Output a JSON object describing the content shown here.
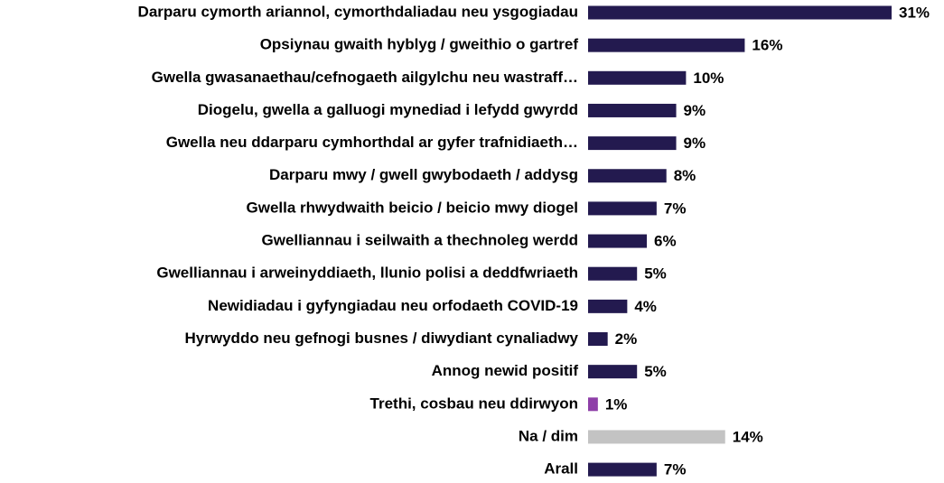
{
  "chart_data": {
    "type": "hbar",
    "categories": [
      "Darparu cymorth ariannol, cymorthdaliadau neu ysgogiadau",
      "Opsiynau gwaith hyblyg / gweithio o gartref",
      "Gwella gwasanaethau/cefnogaeth ailgylchu neu wastraff…",
      "Diogelu, gwella a galluogi mynediad i lefydd gwyrdd",
      "Gwella neu ddarparu cymhorthdal ar gyfer trafnidiaeth…",
      "Darparu mwy / gwell gwybodaeth / addysg",
      "Gwella rhwydwaith beicio / beicio mwy diogel",
      "Gwelliannau i seilwaith a thechnoleg werdd",
      "Gwelliannau i arweinyddiaeth, llunio polisi a deddfwriaeth",
      "Newidiadau i gyfyngiadau neu orfodaeth COVID-19",
      "Hyrwyddo neu gefnogi busnes / diwydiant cynaliadwy",
      "Annog newid positif",
      "Trethi, cosbau neu ddirwyon",
      "Na / dim",
      "Arall"
    ],
    "values": [
      31,
      16,
      10,
      9,
      9,
      8,
      7,
      6,
      5,
      4,
      2,
      5,
      1,
      14,
      7
    ],
    "value_labels": [
      "31%",
      "16%",
      "10%",
      "9%",
      "9%",
      "8%",
      "7%",
      "6%",
      "5%",
      "4%",
      "2%",
      "5%",
      "1%",
      "14%",
      "7%"
    ],
    "colors": [
      "#231a4f",
      "#231a4f",
      "#231a4f",
      "#231a4f",
      "#231a4f",
      "#231a4f",
      "#231a4f",
      "#231a4f",
      "#231a4f",
      "#231a4f",
      "#231a4f",
      "#231a4f",
      "#8e3fa8",
      "#c3c3c3",
      "#231a4f"
    ]
  }
}
